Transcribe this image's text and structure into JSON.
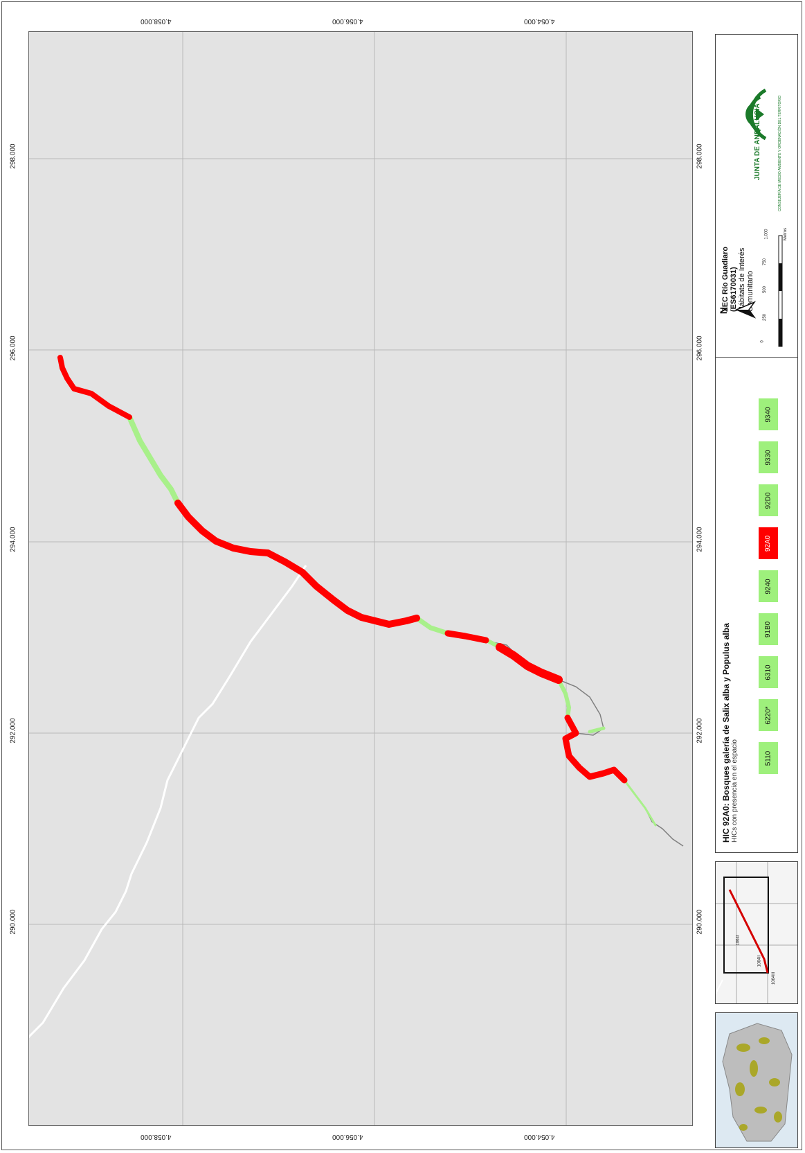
{
  "map": {
    "x_ticks": [
      "290.000",
      "292.000",
      "294.000",
      "296.000",
      "298.000"
    ],
    "y_ticks": [
      "4.058.000",
      "4.056.000",
      "4.054.000"
    ],
    "colors": {
      "background": "#e3e3e3",
      "grid": "#b8b8b8",
      "hic_present_92A0": "#ff0000",
      "zec_other": "#a8f08a",
      "road": "#ffffff"
    }
  },
  "title": {
    "line1": "ZEC Río Guadiaro (ES6170031)",
    "line2": "Hábitats de Interés Comunitario",
    "north_label": "N",
    "scale_labels": [
      "0",
      "250",
      "500",
      "750",
      "1.000",
      "Metros"
    ]
  },
  "logo": {
    "name": "JUNTA DE ANDALUCIA",
    "subtitle": "CONSEJERÍA DE MEDIO AMBIENTE Y ORDENACIÓN DEL TERRITORIO",
    "icon": "junta-andalucia-logo"
  },
  "legend": {
    "title": "HIC 92A0: Bosques galería de Salix alba y Populus alba",
    "subtitle": "HICs con presencia en el espacio",
    "items": [
      {
        "code": "5110",
        "color": "#9ef07c"
      },
      {
        "code": "6220*",
        "color": "#9ef07c"
      },
      {
        "code": "6310",
        "color": "#9ef07c"
      },
      {
        "code": "91B0",
        "color": "#9ef07c"
      },
      {
        "code": "9240",
        "color": "#9ef07c"
      },
      {
        "code": "92A0",
        "color": "#ff0000"
      },
      {
        "code": "92D0",
        "color": "#9ef07c"
      },
      {
        "code": "9330",
        "color": "#9ef07c"
      },
      {
        "code": "9340",
        "color": "#9ef07c"
      }
    ]
  },
  "inset": {
    "labels": [
      "1064I",
      "1064II",
      "1064III"
    ]
  }
}
